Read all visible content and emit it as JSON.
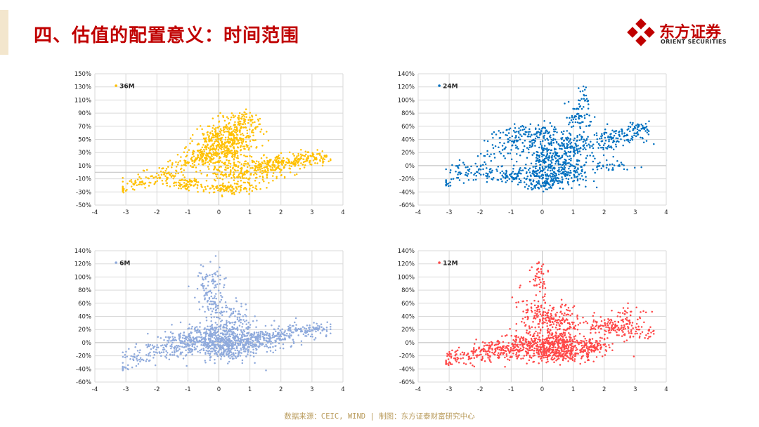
{
  "header": {
    "title": "四、估值的配置意义：时间范围",
    "logo_cn": "东方证券",
    "logo_en": "ORIENT SECURITIES",
    "logo_icon": "diamond-cross-logo-icon"
  },
  "footer": {
    "source_text": "数据来源：CEIC, WIND  | 制图：东方证泰财富研究中心"
  },
  "colors": {
    "title": "#c00000",
    "gridline": "#d9d9d9",
    "axis_text": "#262626",
    "footer": "#b89a5a",
    "accent_bar": "#f3e6cd"
  },
  "chart_data": [
    {
      "type": "scatter",
      "series": [
        {
          "name": "36M",
          "color": "#ffc000"
        }
      ],
      "xlim": [
        -4,
        4
      ],
      "ylim": [
        -50,
        150
      ],
      "xticks": [
        -4,
        -3,
        -2,
        -1,
        0,
        1,
        2,
        3,
        4
      ],
      "yticks": [
        -50,
        -30,
        -10,
        10,
        30,
        50,
        70,
        90,
        110,
        130,
        150
      ],
      "ytick_labels": [
        "-50%",
        "-30%",
        "-10%",
        "10%",
        "30%",
        "50%",
        "70%",
        "90%",
        "110%",
        "130%",
        "150%"
      ],
      "grid": true,
      "legend": "top-left",
      "clusters": [
        [
          -3.1,
          -26,
          0.1,
          3,
          15
        ],
        [
          -2.6,
          -16,
          0.35,
          5,
          45
        ],
        [
          -1.7,
          -6,
          0.3,
          5,
          55
        ],
        [
          -1.0,
          -18,
          0.25,
          4,
          70
        ],
        [
          -1.3,
          10,
          0.35,
          5,
          35
        ],
        [
          -0.6,
          22,
          0.35,
          6,
          60
        ],
        [
          -0.2,
          28,
          0.4,
          10,
          110
        ],
        [
          0.3,
          40,
          0.45,
          14,
          230
        ],
        [
          0.6,
          65,
          0.35,
          12,
          140
        ],
        [
          0.7,
          82,
          0.3,
          6,
          45
        ],
        [
          0.0,
          -26,
          0.4,
          4,
          60
        ],
        [
          0.6,
          -22,
          0.4,
          4,
          60
        ],
        [
          1.2,
          -5,
          0.5,
          5,
          70
        ],
        [
          1.5,
          10,
          0.45,
          6,
          80
        ],
        [
          2.2,
          16,
          0.35,
          6,
          80
        ],
        [
          2.9,
          20,
          0.3,
          6,
          70
        ],
        [
          3.3,
          24,
          0.15,
          4,
          25
        ],
        [
          0.3,
          5,
          0.35,
          8,
          90
        ],
        [
          1.8,
          10,
          0.4,
          5,
          40
        ],
        [
          -0.3,
          55,
          0.25,
          8,
          50
        ]
      ]
    },
    {
      "type": "scatter",
      "series": [
        {
          "name": "24M",
          "color": "#0070c0"
        }
      ],
      "xlim": [
        -4,
        4
      ],
      "ylim": [
        -60,
        140
      ],
      "xticks": [
        -4,
        -3,
        -2,
        -1,
        0,
        1,
        2,
        3,
        4
      ],
      "yticks": [
        -60,
        -40,
        -20,
        0,
        20,
        40,
        60,
        80,
        100,
        120,
        140
      ],
      "ytick_labels": [
        "-60%",
        "-40%",
        "-20%",
        "0%",
        "20%",
        "40%",
        "60%",
        "80%",
        "100%",
        "120%",
        "140%"
      ],
      "grid": true,
      "legend": "top-left",
      "clusters": [
        [
          -3.1,
          -28,
          0.1,
          3,
          15
        ],
        [
          -2.6,
          -10,
          0.35,
          6,
          40
        ],
        [
          -1.8,
          -8,
          0.3,
          7,
          40
        ],
        [
          -1.4,
          18,
          0.3,
          8,
          30
        ],
        [
          -0.8,
          42,
          0.45,
          10,
          90
        ],
        [
          -0.1,
          50,
          0.4,
          8,
          70
        ],
        [
          0.2,
          20,
          0.35,
          14,
          140
        ],
        [
          0.0,
          -28,
          0.3,
          5,
          80
        ],
        [
          0.5,
          -15,
          0.5,
          8,
          120
        ],
        [
          0.9,
          30,
          0.3,
          12,
          90
        ],
        [
          1.2,
          75,
          0.2,
          12,
          60
        ],
        [
          1.35,
          105,
          0.1,
          8,
          20
        ],
        [
          0.6,
          0,
          0.4,
          10,
          100
        ],
        [
          1.8,
          30,
          0.35,
          8,
          60
        ],
        [
          2.5,
          45,
          0.4,
          6,
          80
        ],
        [
          3.1,
          58,
          0.2,
          4,
          40
        ],
        [
          2.0,
          0,
          0.5,
          4,
          40
        ],
        [
          -0.6,
          -12,
          0.4,
          6,
          60
        ],
        [
          -1.1,
          -18,
          0.3,
          4,
          40
        ]
      ]
    },
    {
      "type": "scatter",
      "series": [
        {
          "name": "6M",
          "color": "#8faadc"
        }
      ],
      "xlim": [
        -4,
        4
      ],
      "ylim": [
        -60,
        140
      ],
      "xticks": [
        -4,
        -3,
        -2,
        -1,
        0,
        1,
        2,
        3,
        4
      ],
      "yticks": [
        -60,
        -40,
        -20,
        0,
        20,
        40,
        60,
        80,
        100,
        120,
        140
      ],
      "ytick_labels": [
        "-60%",
        "-40%",
        "-20%",
        "0%",
        "20%",
        "40%",
        "60%",
        "80%",
        "100%",
        "120%",
        "140%"
      ],
      "grid": true,
      "legend": "top-left",
      "clusters": [
        [
          -3.1,
          -40,
          0.1,
          3,
          15
        ],
        [
          -2.6,
          -22,
          0.3,
          5,
          40
        ],
        [
          -1.9,
          -10,
          0.35,
          6,
          60
        ],
        [
          -1.2,
          0,
          0.4,
          8,
          110
        ],
        [
          -0.5,
          8,
          0.45,
          12,
          200
        ],
        [
          0.2,
          5,
          0.45,
          14,
          260
        ],
        [
          0.8,
          0,
          0.4,
          12,
          180
        ],
        [
          1.4,
          2,
          0.35,
          8,
          100
        ],
        [
          2.0,
          10,
          0.35,
          7,
          80
        ],
        [
          2.7,
          18,
          0.35,
          6,
          80
        ],
        [
          3.2,
          24,
          0.2,
          4,
          30
        ],
        [
          -0.3,
          95,
          0.25,
          15,
          60
        ],
        [
          -0.2,
          60,
          0.25,
          15,
          60
        ],
        [
          0.3,
          50,
          0.3,
          12,
          40
        ],
        [
          0.7,
          35,
          0.2,
          8,
          30
        ],
        [
          0.0,
          -15,
          0.5,
          8,
          100
        ]
      ]
    },
    {
      "type": "scatter",
      "series": [
        {
          "name": "12M",
          "color": "#ff4747"
        }
      ],
      "xlim": [
        -4,
        4
      ],
      "ylim": [
        -60,
        140
      ],
      "xticks": [
        -4,
        -3,
        -2,
        -1,
        0,
        1,
        2,
        3,
        4
      ],
      "yticks": [
        -60,
        -40,
        -20,
        0,
        20,
        40,
        60,
        80,
        100,
        120,
        140
      ],
      "ytick_labels": [
        "-60%",
        "-40%",
        "-20%",
        "0%",
        "20%",
        "40%",
        "60%",
        "80%",
        "100%",
        "120%",
        "140%"
      ],
      "grid": true,
      "legend": "top-left",
      "clusters": [
        [
          -3.1,
          -32,
          0.1,
          3,
          15
        ],
        [
          -2.5,
          -22,
          0.35,
          6,
          50
        ],
        [
          -1.8,
          -15,
          0.35,
          7,
          70
        ],
        [
          -1.2,
          -10,
          0.35,
          8,
          90
        ],
        [
          -0.5,
          -2,
          0.4,
          10,
          130
        ],
        [
          0.2,
          -10,
          0.5,
          10,
          240
        ],
        [
          1.0,
          -12,
          0.45,
          8,
          170
        ],
        [
          1.6,
          -5,
          0.35,
          6,
          90
        ],
        [
          -0.3,
          45,
          0.3,
          15,
          80
        ],
        [
          -0.05,
          100,
          0.15,
          14,
          50
        ],
        [
          0.4,
          35,
          0.3,
          12,
          100
        ],
        [
          0.8,
          30,
          0.3,
          10,
          60
        ],
        [
          2.0,
          25,
          0.35,
          8,
          60
        ],
        [
          2.6,
          25,
          0.35,
          8,
          60
        ],
        [
          3.1,
          15,
          0.3,
          5,
          40
        ],
        [
          2.8,
          45,
          0.3,
          8,
          30
        ],
        [
          0.5,
          5,
          0.3,
          6,
          80
        ]
      ]
    }
  ]
}
